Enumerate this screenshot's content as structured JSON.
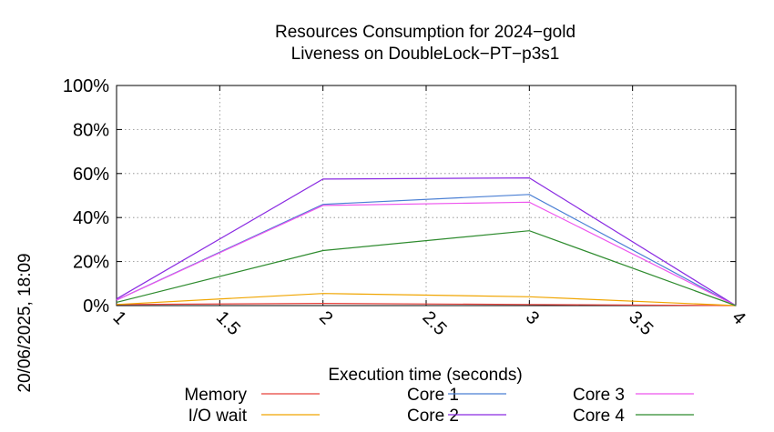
{
  "chart_data": {
    "type": "line",
    "title": "Resources Consumption for 2024−gold",
    "subtitle": "Liveness on DoubleLock−PT−p3s1",
    "xlabel": "Execution time (seconds)",
    "ylabel": "",
    "side_label": "20/06/2025, 18:09",
    "xlim": [
      1,
      4
    ],
    "ylim": [
      0,
      100
    ],
    "x_ticks": [
      {
        "value": 1,
        "label": "1"
      },
      {
        "value": 1.5,
        "label": "1.5"
      },
      {
        "value": 2,
        "label": "2"
      },
      {
        "value": 2.5,
        "label": "2.5"
      },
      {
        "value": 3,
        "label": "3"
      },
      {
        "value": 3.5,
        "label": "3.5"
      },
      {
        "value": 4,
        "label": "4"
      }
    ],
    "y_ticks": [
      {
        "value": 0,
        "label": "0%"
      },
      {
        "value": 20,
        "label": "20%"
      },
      {
        "value": 40,
        "label": "40%"
      },
      {
        "value": 60,
        "label": "60%"
      },
      {
        "value": 80,
        "label": "80%"
      },
      {
        "value": 100,
        "label": "100%"
      }
    ],
    "grid": true,
    "legend_position": "bottom",
    "x": [
      1,
      2,
      3,
      4
    ],
    "series": [
      {
        "name": "Memory",
        "color": "#e8413b",
        "values": [
          0.5,
          1,
          0.5,
          0
        ]
      },
      {
        "name": "I/O wait",
        "color": "#f0a500",
        "values": [
          0.5,
          5.5,
          4,
          0
        ]
      },
      {
        "name": "Core 1",
        "color": "#4a7fd4",
        "values": [
          2.5,
          46,
          50.5,
          0
        ]
      },
      {
        "name": "Core 2",
        "color": "#8a2be2",
        "values": [
          3,
          57.5,
          58,
          0
        ]
      },
      {
        "name": "Core 3",
        "color": "#ee55ee",
        "values": [
          2.5,
          45.5,
          47,
          0
        ]
      },
      {
        "name": "Core 4",
        "color": "#2e8b2e",
        "values": [
          1.5,
          25,
          34,
          0
        ]
      }
    ]
  }
}
